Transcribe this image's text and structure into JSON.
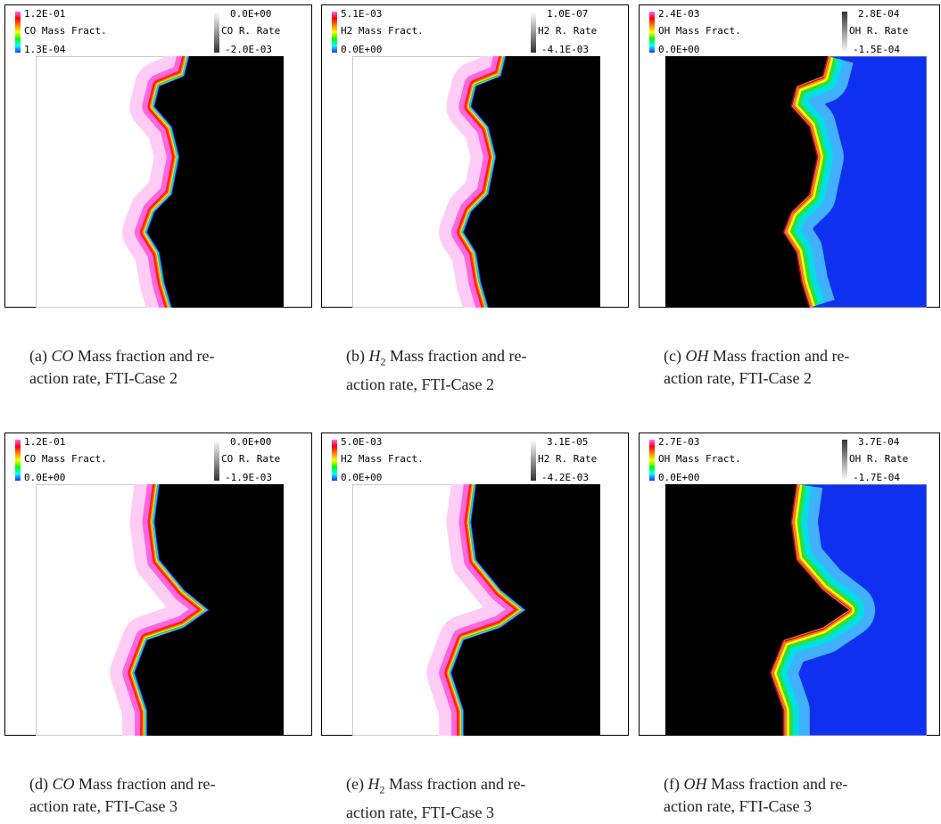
{
  "panels": [
    {
      "legend": {
        "mass_max": "1.2E-01",
        "mass_label": "CO Mass Fract.",
        "mass_min": "1.3E-04",
        "rate_max": "0.0E+00",
        "rate_label": "CO R. Rate",
        "rate_min": "-2.0E-03"
      },
      "caption": {
        "label": "(a)",
        "species": "CO",
        "line1": "Mass fraction and re-",
        "line2": "action rate, FTI-Case 2"
      }
    },
    {
      "legend": {
        "mass_max": "5.1E-03",
        "mass_label": "H2 Mass Fract.",
        "mass_min": "0.0E+00",
        "rate_max": "1.0E-07",
        "rate_label": "H2 R. Rate",
        "rate_min": "-4.1E-03"
      },
      "caption": {
        "label": "(b)",
        "species": "H",
        "species_sub": "2",
        "line1": "Mass fraction and re-",
        "line2": "action rate, FTI-Case 2"
      }
    },
    {
      "legend": {
        "mass_max": "2.4E-03",
        "mass_label": "OH Mass Fract.",
        "mass_min": "0.0E+00",
        "rate_max": "2.8E-04",
        "rate_label": "OH R. Rate",
        "rate_min": "-1.5E-04"
      },
      "caption": {
        "label": "(c)",
        "species": "OH",
        "line1": "Mass fraction and re-",
        "line2": "action rate, FTI-Case 2"
      }
    },
    {
      "legend": {
        "mass_max": "1.2E-01",
        "mass_label": "CO Mass Fract.",
        "mass_min": "0.0E+00",
        "rate_max": "0.0E+00",
        "rate_label": "CO R. Rate",
        "rate_min": "-1.9E-03"
      },
      "caption": {
        "label": "(d)",
        "species": "CO",
        "line1": "Mass fraction and re-",
        "line2": "action rate, FTI-Case 3"
      }
    },
    {
      "legend": {
        "mass_max": "5.0E-03",
        "mass_label": "H2 Mass Fract.",
        "mass_min": "0.0E+00",
        "rate_max": "3.1E-05",
        "rate_label": "H2 R. Rate",
        "rate_min": "-4.2E-03"
      },
      "caption": {
        "label": "(e)",
        "species": "H",
        "species_sub": "2",
        "line1": "Mass fraction and re-",
        "line2": "action rate, FTI-Case 3"
      }
    },
    {
      "legend": {
        "mass_max": "2.7E-03",
        "mass_label": "OH Mass Fract.",
        "mass_min": "0.0E+00",
        "rate_max": "3.7E-04",
        "rate_label": "OH R. Rate",
        "rate_min": "-1.7E-04"
      },
      "caption": {
        "label": "(f)",
        "species": "OH",
        "line1": "Mass fraction and re-",
        "line2": "action rate, FTI-Case 3"
      }
    }
  ]
}
